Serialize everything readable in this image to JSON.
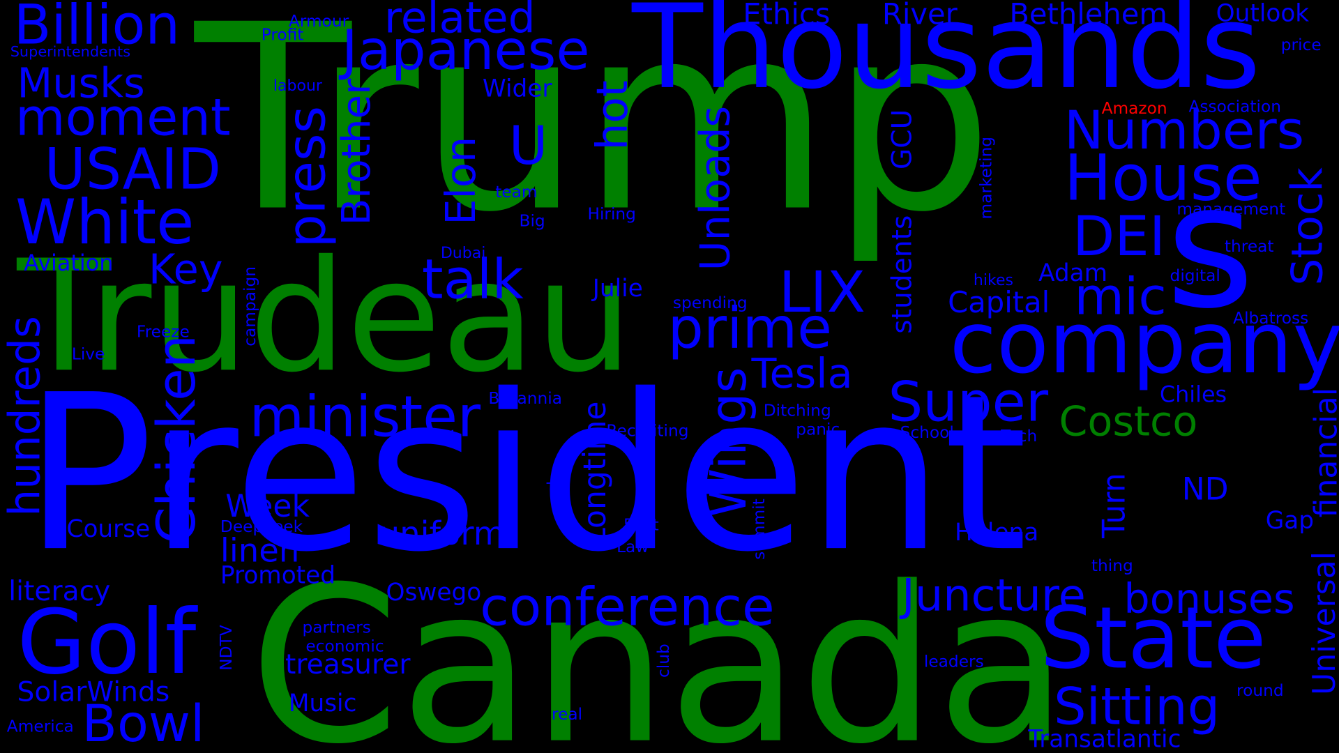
{
  "colors": {
    "background": "#000000",
    "blue": "#0000ff",
    "green": "#008000",
    "red": "#ff0000"
  },
  "words": {
    "trump": "Trump",
    "president": "President",
    "canada": "Canada",
    "thousands": "Thousands",
    "trudeau": "Trudeau",
    "s": "s",
    "company": "company",
    "state": "State",
    "golf": "Golf",
    "billion": "Billion",
    "japanese": "Japanese",
    "related": "related",
    "ethics": "Ethics",
    "river": "River",
    "bethlehem": "Bethlehem",
    "outlook": "Outlook",
    "armour": "Armour",
    "profit": "Profit",
    "superintendents": "Superintendents",
    "price": "price",
    "musks": "Musks",
    "moment": "moment",
    "usaid": "USAID",
    "white": "White",
    "aviation": "Aviation",
    "key": "Key",
    "labour": "labour",
    "wider": "Wider",
    "u": "U",
    "amazon": "Amazon",
    "association": "Association",
    "numbers": "Numbers",
    "house": "House",
    "dei": "DEI",
    "management": "management",
    "threat": "threat",
    "digital": "digital",
    "adam": "Adam",
    "mic": "mic",
    "capital": "Capital",
    "hikes": "hikes",
    "lix": "LIX",
    "spending": "spending",
    "julie": "Julie",
    "talk": "talk",
    "dubai": "Dubai",
    "big": "Big",
    "team": "team",
    "hiring": "Hiring",
    "prime": "prime",
    "tesla": "Tesla",
    "super": "Super",
    "costco": "Costco",
    "chiles": "Chiles",
    "albatross": "Albatross",
    "minister": "minister",
    "freeze": "Freeze",
    "live": "Live",
    "britannia": "Britannia",
    "ditching": "Ditching",
    "panic": "panic",
    "recruiting": "Recruiting",
    "school": "School",
    "tech": "Tech",
    "week": "Week",
    "course": "Course",
    "deepseek": "DeepSeek",
    "linen": "linen",
    "promoted": "Promoted",
    "uniform": "uniform",
    "tv": "TV",
    "51st": "51st",
    "law": "Law",
    "nd": "ND",
    "helena": "Helena",
    "gap": "Gap",
    "thing": "thing",
    "literacy": "literacy",
    "oswego": "Oswego",
    "conference": "conference",
    "juncture": "Juncture",
    "bonuses": "bonuses",
    "partners": "partners",
    "economic": "economic",
    "treasurer": "treasurer",
    "solarwinds": "SolarWinds",
    "bowl": "Bowl",
    "music": "Music",
    "america": "America",
    "real": "real",
    "leaders": "leaders",
    "sitting": "Sitting",
    "round": "round",
    "transatlantic": "Transatlantic",
    "hundreds": "hundreds",
    "chicken": "Chicken",
    "press": "press",
    "brother": "Brother",
    "elon": "Elon",
    "hot": "hot",
    "unloads": "Unloads",
    "wings": "Wings",
    "longtime": "Longtime",
    "students": "students",
    "gcu": "GCU",
    "stock": "Stock",
    "financial": "financial",
    "universal": "Universal",
    "turn": "Turn",
    "marketing": "marketing",
    "campaign": "campaign",
    "summit": "summit",
    "ndtv": "NDTV",
    "club": "club"
  }
}
